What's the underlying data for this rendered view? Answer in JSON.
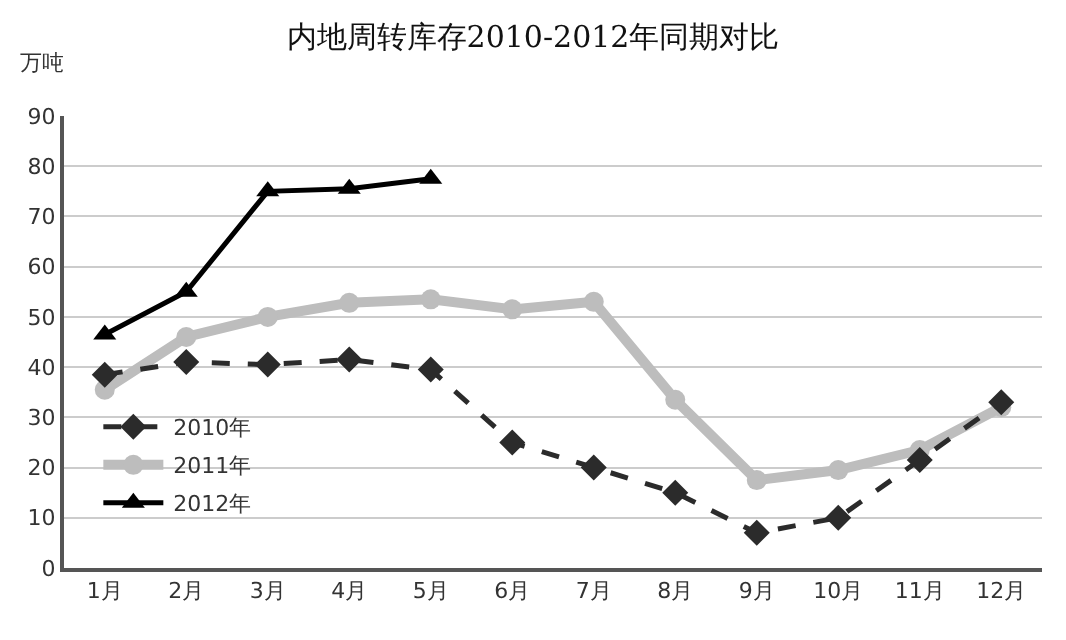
{
  "chart_data": {
    "type": "line",
    "title": "内地周转库存2010-2012年同期对比",
    "ylabel": "万吨",
    "categories": [
      "1月",
      "2月",
      "3月",
      "4月",
      "5月",
      "6月",
      "7月",
      "8月",
      "9月",
      "10月",
      "11月",
      "12月"
    ],
    "series": [
      {
        "name": "2010年",
        "color": "#2b2b2b",
        "marker": "diamond",
        "line_style": "dashed",
        "values": [
          38.5,
          41,
          40.5,
          41.5,
          39.5,
          25,
          20,
          15,
          7,
          10,
          21.5,
          33
        ]
      },
      {
        "name": "2011年",
        "color": "#bdbdbd",
        "marker": "circle",
        "line_style": "solid",
        "values": [
          35.5,
          46,
          50,
          52.8,
          53.5,
          51.5,
          53,
          33.5,
          17.5,
          19.5,
          23.5,
          32
        ]
      },
      {
        "name": "2012年",
        "color": "#000000",
        "marker": "triangle",
        "line_style": "solid",
        "values": [
          46.5,
          55,
          75,
          75.5,
          77.5,
          null,
          null,
          null,
          null,
          null,
          null,
          null
        ]
      }
    ],
    "ylim": [
      0,
      90
    ],
    "yticks": [
      0,
      10,
      20,
      30,
      40,
      50,
      60,
      70,
      80,
      90
    ],
    "grid": "y",
    "legend": "bottom left"
  }
}
